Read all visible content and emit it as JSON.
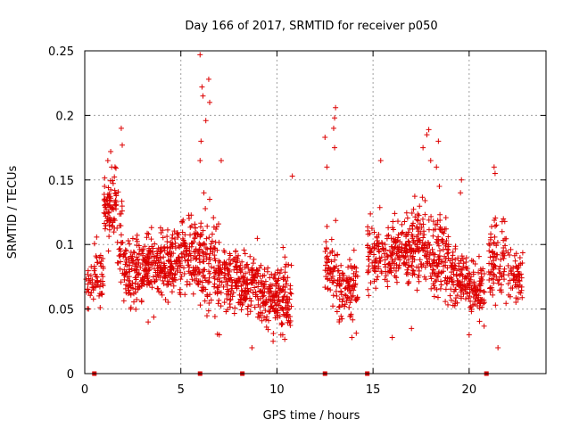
{
  "chart_data": {
    "type": "scatter",
    "title": "Day 166 of 2017, SRMTID for receiver p050",
    "xlabel": "GPS time / hours",
    "ylabel": "SRMTID / TECUs",
    "xlim": [
      0,
      24
    ],
    "ylim": [
      0,
      0.25
    ],
    "grid": true,
    "marker": "+",
    "color": "#dd0000",
    "x_tick_values": [
      0,
      5,
      10,
      15,
      20
    ],
    "x_tick_labels": [
      "0",
      "5",
      "10",
      "15",
      "20"
    ],
    "y_tick_values": [
      0,
      0.05,
      0.1,
      0.15,
      0.2,
      0.25
    ],
    "y_tick_labels": [
      "0",
      "0.05",
      "0.1",
      "0.15",
      "0.2",
      "0.25"
    ],
    "zero_markers_x": [
      0.5,
      6.0,
      8.2,
      12.5,
      14.7,
      20.9
    ],
    "density_profile": [
      {
        "t0": 0.0,
        "t1": 0.5,
        "mean": 0.07,
        "sd": 0.015,
        "n": 25
      },
      {
        "t0": 0.5,
        "t1": 1.0,
        "mean": 0.075,
        "sd": 0.02,
        "n": 40
      },
      {
        "t0": 1.0,
        "t1": 1.7,
        "mean": 0.13,
        "sd": 0.02,
        "n": 80
      },
      {
        "t0": 1.7,
        "t1": 2.0,
        "mean": 0.105,
        "sd": 0.03,
        "n": 25
      },
      {
        "t0": 2.0,
        "t1": 3.0,
        "mean": 0.08,
        "sd": 0.022,
        "n": 110
      },
      {
        "t0": 3.0,
        "t1": 4.0,
        "mean": 0.085,
        "sd": 0.022,
        "n": 120
      },
      {
        "t0": 4.0,
        "t1": 5.0,
        "mean": 0.088,
        "sd": 0.02,
        "n": 120
      },
      {
        "t0": 5.0,
        "t1": 6.0,
        "mean": 0.09,
        "sd": 0.025,
        "n": 110
      },
      {
        "t0": 6.0,
        "t1": 7.0,
        "mean": 0.085,
        "sd": 0.03,
        "n": 110
      },
      {
        "t0": 7.0,
        "t1": 8.0,
        "mean": 0.075,
        "sd": 0.02,
        "n": 100
      },
      {
        "t0": 8.0,
        "t1": 9.0,
        "mean": 0.07,
        "sd": 0.02,
        "n": 100
      },
      {
        "t0": 9.0,
        "t1": 10.0,
        "mean": 0.06,
        "sd": 0.018,
        "n": 110
      },
      {
        "t0": 10.0,
        "t1": 10.8,
        "mean": 0.06,
        "sd": 0.025,
        "n": 90
      },
      {
        "t0": 12.5,
        "t1": 13.2,
        "mean": 0.08,
        "sd": 0.025,
        "n": 60
      },
      {
        "t0": 13.2,
        "t1": 14.2,
        "mean": 0.065,
        "sd": 0.02,
        "n": 90
      },
      {
        "t0": 14.7,
        "t1": 16.0,
        "mean": 0.09,
        "sd": 0.02,
        "n": 110
      },
      {
        "t0": 16.0,
        "t1": 17.0,
        "mean": 0.095,
        "sd": 0.02,
        "n": 110
      },
      {
        "t0": 17.0,
        "t1": 18.0,
        "mean": 0.1,
        "sd": 0.025,
        "n": 110
      },
      {
        "t0": 18.0,
        "t1": 19.0,
        "mean": 0.09,
        "sd": 0.025,
        "n": 110
      },
      {
        "t0": 19.0,
        "t1": 20.0,
        "mean": 0.075,
        "sd": 0.02,
        "n": 100
      },
      {
        "t0": 20.0,
        "t1": 20.8,
        "mean": 0.065,
        "sd": 0.018,
        "n": 80
      },
      {
        "t0": 21.0,
        "t1": 22.0,
        "mean": 0.09,
        "sd": 0.025,
        "n": 90
      },
      {
        "t0": 22.0,
        "t1": 22.8,
        "mean": 0.075,
        "sd": 0.02,
        "n": 60
      }
    ],
    "outliers": [
      [
        6.0,
        0.247
      ],
      [
        6.1,
        0.222
      ],
      [
        6.15,
        0.215
      ],
      [
        6.3,
        0.196
      ],
      [
        6.45,
        0.228
      ],
      [
        6.5,
        0.21
      ],
      [
        6.05,
        0.18
      ],
      [
        6.0,
        0.165
      ],
      [
        1.9,
        0.19
      ],
      [
        1.95,
        0.177
      ],
      [
        12.5,
        0.183
      ],
      [
        12.6,
        0.16
      ],
      [
        13.05,
        0.206
      ],
      [
        13.0,
        0.198
      ],
      [
        12.95,
        0.19
      ],
      [
        13.0,
        0.175
      ],
      [
        17.9,
        0.189
      ],
      [
        17.8,
        0.185
      ],
      [
        18.4,
        0.18
      ],
      [
        17.6,
        0.175
      ],
      [
        18.0,
        0.165
      ],
      [
        18.3,
        0.16
      ],
      [
        21.3,
        0.16
      ],
      [
        21.35,
        0.155
      ],
      [
        15.4,
        0.165
      ],
      [
        7.1,
        0.165
      ],
      [
        10.8,
        0.153
      ],
      [
        19.6,
        0.15
      ],
      [
        1.2,
        0.165
      ],
      [
        1.4,
        0.16
      ],
      [
        1.35,
        0.172
      ],
      [
        6.5,
        0.135
      ],
      [
        18.45,
        0.145
      ],
      [
        19.55,
        0.14
      ],
      [
        6.2,
        0.14
      ],
      [
        21.5,
        0.02
      ],
      [
        8.7,
        0.02
      ],
      [
        9.8,
        0.025
      ],
      [
        13.9,
        0.028
      ],
      [
        16.0,
        0.028
      ],
      [
        20.0,
        0.03
      ],
      [
        7.0,
        0.03
      ],
      [
        17.0,
        0.035
      ],
      [
        3.3,
        0.04
      ],
      [
        10.3,
        0.03
      ]
    ]
  }
}
